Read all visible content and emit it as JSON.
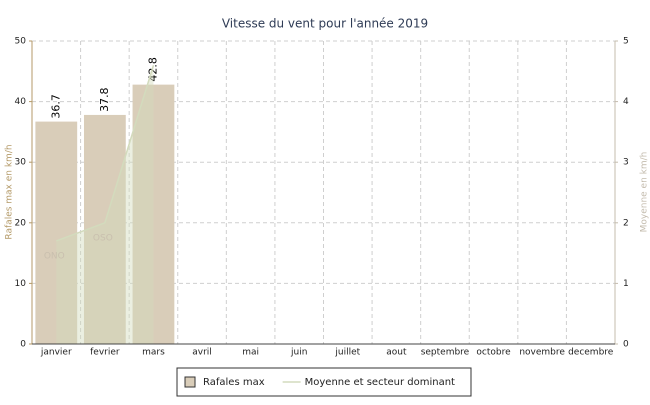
{
  "chart_data": {
    "type": "bar",
    "title": "Vitesse du vent pour l'année 2019",
    "categories": [
      "janvier",
      "fevrier",
      "mars",
      "avril",
      "mai",
      "juin",
      "juillet",
      "aout",
      "septembre",
      "octobre",
      "novembre",
      "decembre"
    ],
    "series": [
      {
        "name": "Rafales max",
        "type": "bar",
        "color": "#d9cdb9",
        "values": [
          36.7,
          37.8,
          42.8,
          null,
          null,
          null,
          null,
          null,
          null,
          null,
          null,
          null
        ]
      },
      {
        "name": "Moyenne et secteur dominant",
        "type": "area",
        "axis": "y2",
        "color": "#d3dbbd",
        "values": [
          1.7,
          2.0,
          4.6,
          null,
          null,
          null,
          null,
          null,
          null,
          null,
          null,
          null
        ],
        "point_labels": [
          "ONO",
          "OSO",
          null,
          null,
          null,
          null,
          null,
          null,
          null,
          null,
          null,
          null
        ]
      }
    ],
    "y_label": "Rafales max en km/h",
    "y2_label": "Moyenne en km/h",
    "ylim": [
      0,
      50
    ],
    "yticks": [
      0,
      10,
      20,
      30,
      40,
      50
    ],
    "y2lim": [
      0,
      5
    ],
    "y2ticks": [
      0,
      1,
      2,
      3,
      4,
      5
    ],
    "grid": true,
    "legend": "bottom"
  }
}
